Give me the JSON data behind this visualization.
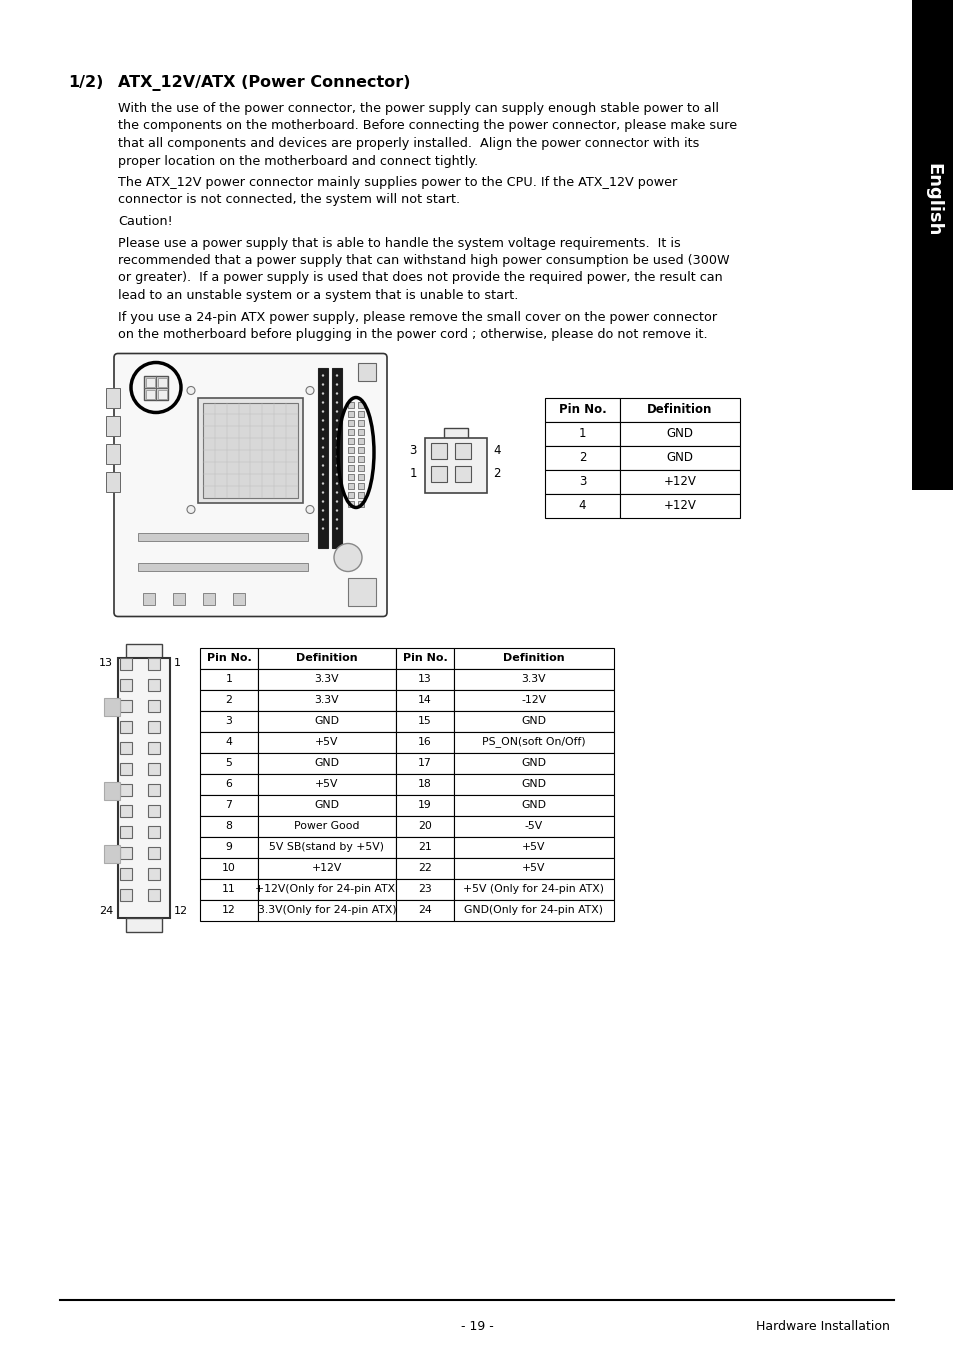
{
  "page_title": "1/2)",
  "section_title": "ATX_12V/ATX (Power Connector)",
  "body_lines": [
    "With the use of the power connector, the power supply can supply enough stable power to all",
    "the components on the motherboard. Before connecting the power connector, please make sure",
    "that all components and devices are properly installed.  Align the power connector with its",
    "proper location on the motherboard and connect tightly.",
    "",
    "The ATX_12V power connector mainly supplies power to the CPU. If the ATX_12V power",
    "connector is not connected, the system will not start.",
    "",
    "Caution!",
    "",
    "Please use a power supply that is able to handle the system voltage requirements.  It is",
    "recommended that a power supply that can withstand high power consumption be used (300W",
    "or greater).  If a power supply is used that does not provide the required power, the result can",
    "lead to an unstable system or a system that is unable to start.",
    "",
    "If you use a 24-pin ATX power supply, please remove the small cover on the power connector",
    "on the motherboard before plugging in the power cord ; otherwise, please do not remove it."
  ],
  "table1_headers": [
    "Pin No.",
    "Definition"
  ],
  "table1_rows": [
    [
      "1",
      "GND"
    ],
    [
      "2",
      "GND"
    ],
    [
      "3",
      "+12V"
    ],
    [
      "4",
      "+12V"
    ]
  ],
  "table2_headers": [
    "Pin No.",
    "Definition",
    "Pin No.",
    "Definition"
  ],
  "table2_rows": [
    [
      "1",
      "3.3V",
      "13",
      "3.3V"
    ],
    [
      "2",
      "3.3V",
      "14",
      "-12V"
    ],
    [
      "3",
      "GND",
      "15",
      "GND"
    ],
    [
      "4",
      "+5V",
      "16",
      "PS_ON(soft On/Off)"
    ],
    [
      "5",
      "GND",
      "17",
      "GND"
    ],
    [
      "6",
      "+5V",
      "18",
      "GND"
    ],
    [
      "7",
      "GND",
      "19",
      "GND"
    ],
    [
      "8",
      "Power Good",
      "20",
      "-5V"
    ],
    [
      "9",
      "5V SB(stand by +5V)",
      "21",
      "+5V"
    ],
    [
      "10",
      "+12V",
      "22",
      "+5V"
    ],
    [
      "11",
      "+12V(Only for 24-pin ATX)",
      "23",
      "+5V (Only for 24-pin ATX)"
    ],
    [
      "12",
      "3.3V(Only for 24-pin ATX)",
      "24",
      "GND(Only for 24-pin ATX)"
    ]
  ],
  "footer_left": "- 19 -",
  "footer_right": "Hardware Installation",
  "sidebar_text": "English",
  "bg_color": "#ffffff",
  "text_color": "#000000",
  "sidebar_bg": "#000000",
  "sidebar_text_color": "#ffffff"
}
